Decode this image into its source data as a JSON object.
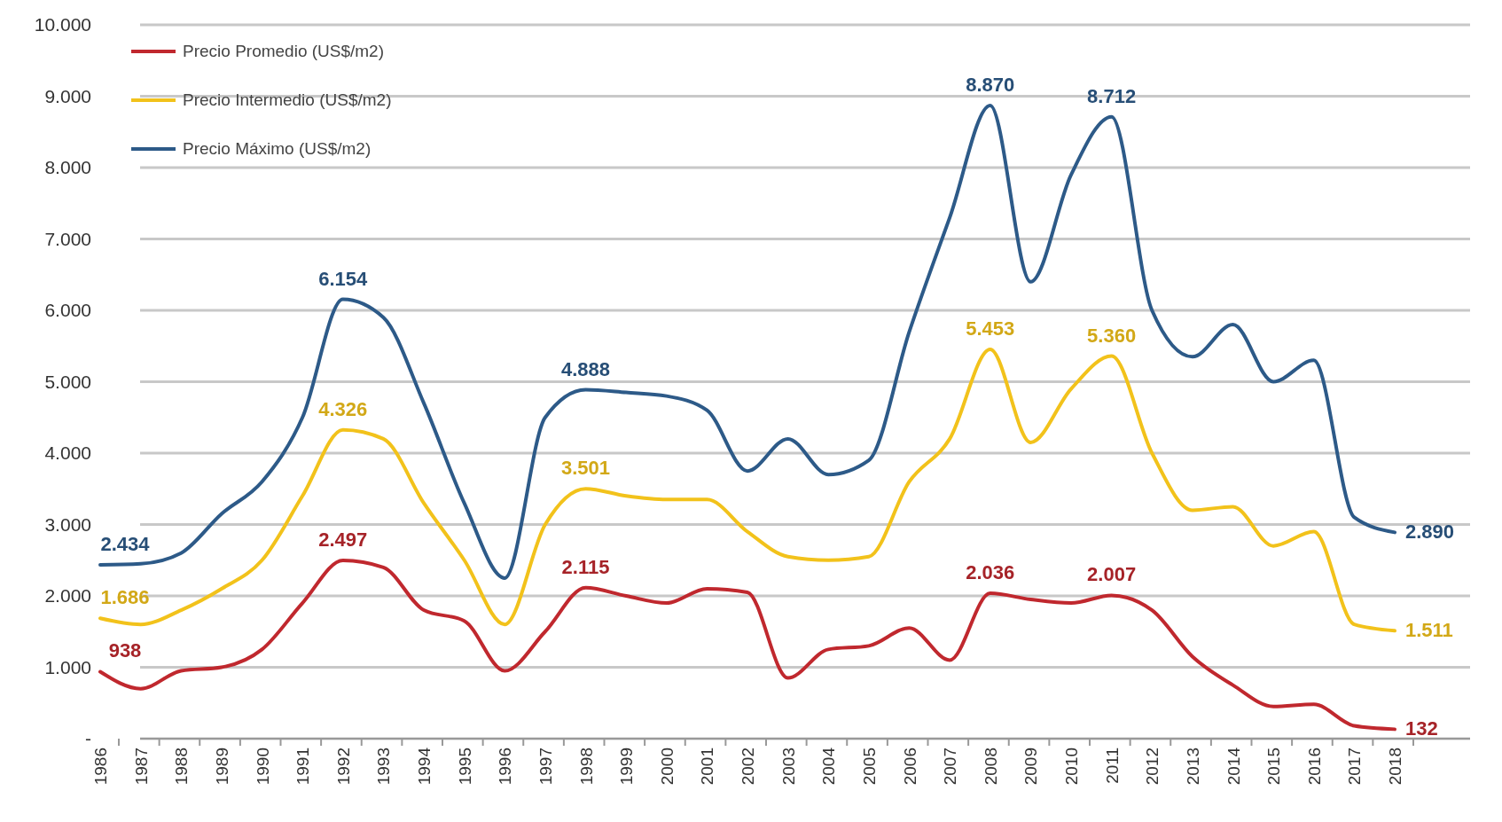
{
  "chart_data": {
    "type": "line",
    "categories": [
      "1986",
      "1987",
      "1988",
      "1989",
      "1990",
      "1991",
      "1992",
      "1993",
      "1994",
      "1995",
      "1996",
      "1997",
      "1998",
      "1999",
      "2000",
      "2001",
      "2002",
      "2003",
      "2004",
      "2005",
      "2006",
      "2007",
      "2008",
      "2009",
      "2010",
      "2011",
      "2012",
      "2013",
      "2014",
      "2015",
      "2016",
      "2017",
      "2018"
    ],
    "series": [
      {
        "name": "Precio Promedio (US$/m2)",
        "color": "#c0282e",
        "values": [
          938,
          700,
          950,
          1000,
          1250,
          1900,
          2497,
          2400,
          1800,
          1650,
          950,
          1500,
          2115,
          2000,
          1900,
          2100,
          2050,
          850,
          1250,
          1300,
          1550,
          1100,
          2036,
          1950,
          1900,
          2007,
          1800,
          1150,
          750,
          450,
          480,
          180,
          132
        ],
        "value_labels": [
          "938",
          null,
          null,
          null,
          null,
          null,
          "2.497",
          null,
          null,
          null,
          null,
          null,
          "2.115",
          null,
          null,
          null,
          null,
          null,
          null,
          null,
          null,
          null,
          "2.036",
          null,
          null,
          "2.007",
          null,
          null,
          null,
          null,
          null,
          null,
          "132"
        ]
      },
      {
        "name": "Precio Intermedio (US$/m2)",
        "color": "#f2c21b",
        "values": [
          1686,
          1600,
          1800,
          2100,
          2500,
          3400,
          4326,
          4200,
          3300,
          2500,
          1600,
          3000,
          3501,
          3400,
          3350,
          3350,
          2900,
          2550,
          2500,
          2550,
          3600,
          4200,
          5453,
          4150,
          4900,
          5360,
          4000,
          3200,
          3250,
          2700,
          2900,
          1600,
          1511
        ],
        "value_labels": [
          "1.686",
          null,
          null,
          null,
          null,
          null,
          "4.326",
          null,
          null,
          null,
          null,
          null,
          "3.501",
          null,
          null,
          null,
          null,
          null,
          null,
          null,
          null,
          null,
          "5.453",
          null,
          null,
          "5.360",
          null,
          null,
          null,
          null,
          null,
          null,
          "1.511"
        ]
      },
      {
        "name": "Precio Máximo (US$/m2)",
        "color": "#2d5a88",
        "values": [
          2434,
          2450,
          2600,
          3150,
          3600,
          4500,
          6154,
          5900,
          4700,
          3300,
          2250,
          4500,
          4888,
          4850,
          4800,
          4600,
          3750,
          4200,
          3700,
          3900,
          5700,
          7300,
          8870,
          6400,
          7900,
          8712,
          6000,
          5350,
          5800,
          5000,
          5300,
          3100,
          2890
        ],
        "value_labels": [
          "2.434",
          null,
          null,
          null,
          null,
          null,
          "6.154",
          null,
          null,
          null,
          null,
          null,
          "4.888",
          null,
          null,
          null,
          null,
          null,
          null,
          null,
          null,
          null,
          "8.870",
          null,
          null,
          "8.712",
          null,
          null,
          null,
          null,
          null,
          null,
          "2.890"
        ]
      }
    ],
    "ylim": [
      0,
      10000
    ],
    "yticks": [
      {
        "value": 0,
        "label": "-"
      },
      {
        "value": 1000,
        "label": "1.000"
      },
      {
        "value": 2000,
        "label": "2.000"
      },
      {
        "value": 3000,
        "label": "3.000"
      },
      {
        "value": 4000,
        "label": "4.000"
      },
      {
        "value": 5000,
        "label": "5.000"
      },
      {
        "value": 6000,
        "label": "6.000"
      },
      {
        "value": 7000,
        "label": "7.000"
      },
      {
        "value": 8000,
        "label": "8.000"
      },
      {
        "value": 9000,
        "label": "9.000"
      },
      {
        "value": 10000,
        "label": "10.000"
      }
    ],
    "grid": "y",
    "legend": "top left",
    "marker": "none",
    "line_style": "solid"
  }
}
